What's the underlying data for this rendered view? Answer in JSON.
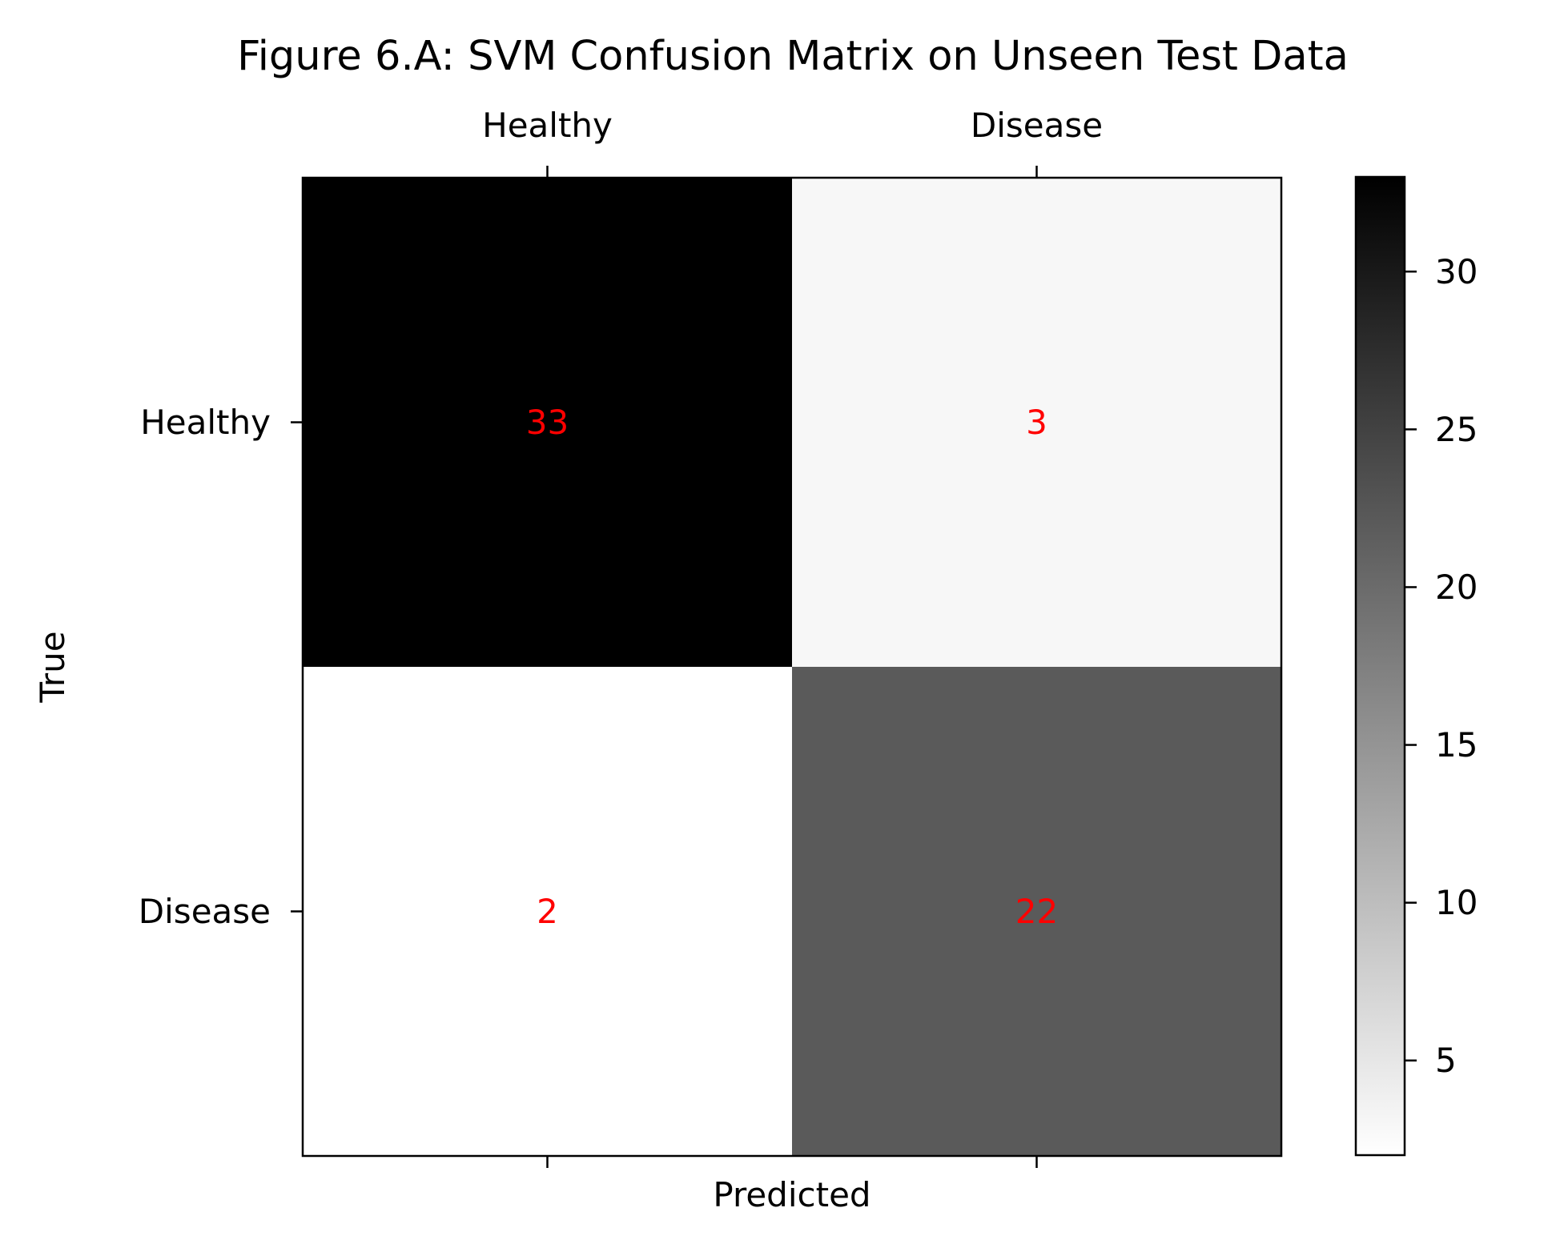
{
  "chart_data": {
    "type": "heatmap",
    "title": "Figure 6.A: SVM Confusion Matrix on Unseen Test Data",
    "xlabel": "Predicted",
    "ylabel": "True",
    "x_categories": [
      "Healthy",
      "Disease"
    ],
    "y_categories": [
      "Healthy",
      "Disease"
    ],
    "matrix": [
      [
        33,
        3
      ],
      [
        2,
        22
      ]
    ],
    "colormap": "gray_r",
    "value_range": [
      2,
      33
    ],
    "colorbar_ticks": [
      5,
      10,
      15,
      20,
      25,
      30
    ],
    "x_tick_position": "top",
    "annotation_color": "#ff0000",
    "grid": false
  }
}
